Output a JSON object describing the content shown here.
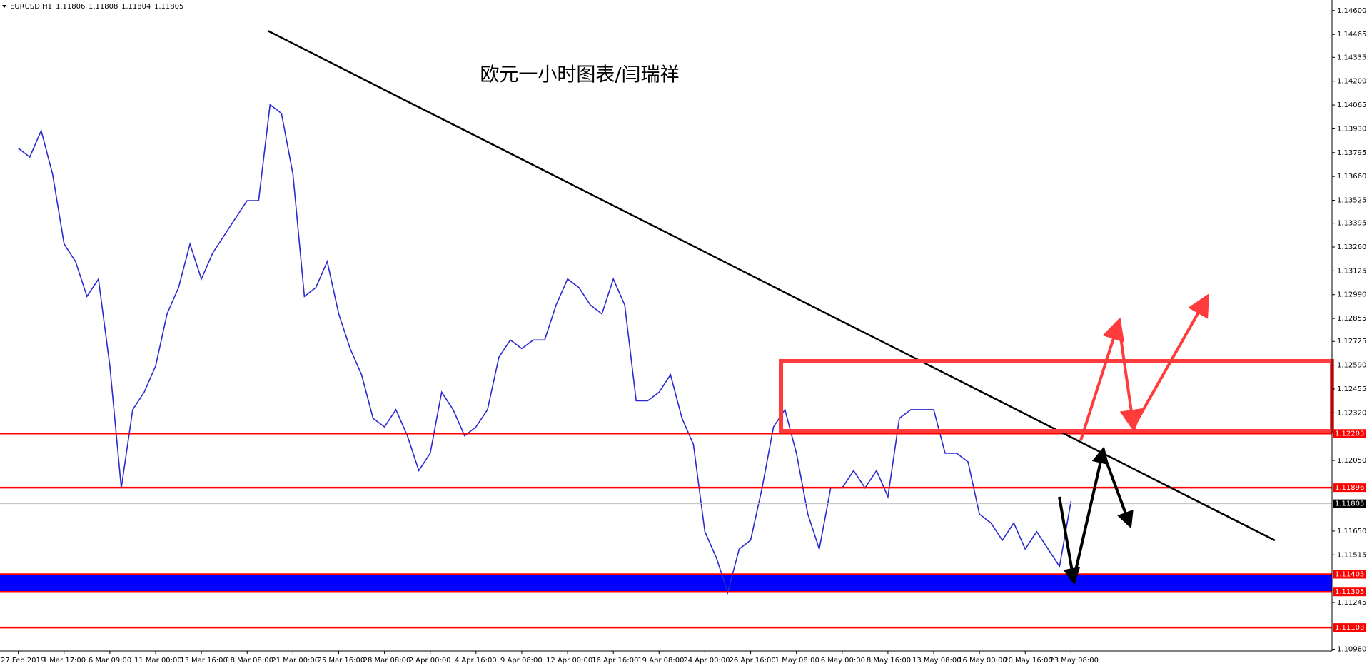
{
  "chart_data": {
    "type": "line",
    "symbol": "EURUSD,H1",
    "quote": [
      1.11806,
      1.11808,
      1.11804,
      1.11805
    ],
    "title": "欧元一小时图表/闫瑞祥",
    "categories": [
      "27 Feb 2019",
      null,
      null,
      null,
      "1 Mar 17:00",
      null,
      null,
      null,
      "6 Mar 09:00",
      null,
      null,
      null,
      "11 Mar 00:00",
      null,
      null,
      null,
      "13 Mar 16:00",
      null,
      null,
      null,
      "18 Mar 08:00",
      null,
      null,
      null,
      "21 Mar 00:00",
      null,
      null,
      null,
      "25 Mar 16:00",
      null,
      null,
      null,
      "28 Mar 08:00",
      null,
      null,
      null,
      "2 Apr 00:00",
      null,
      null,
      null,
      "4 Apr 16:00",
      null,
      null,
      null,
      "9 Apr 08:00",
      null,
      null,
      null,
      "12 Apr 00:00",
      null,
      null,
      null,
      "16 Apr 16:00",
      null,
      null,
      null,
      "19 Apr 08:00",
      null,
      null,
      null,
      "24 Apr 00:00",
      null,
      null,
      null,
      "26 Apr 16:00",
      null,
      null,
      null,
      "1 May 08:00",
      null,
      null,
      null,
      "6 May 00:00",
      null,
      null,
      null,
      "8 May 16:00",
      null,
      null,
      null,
      "13 May 08:00",
      null,
      null,
      null,
      "16 May 00:00",
      null,
      null,
      null,
      "20 May 16:00",
      null,
      null,
      null,
      "23 May 08:00"
    ],
    "series": [
      {
        "name": "EURUSD",
        "color": "#2a2ad0",
        "values": [
          1.1382,
          1.1377,
          1.13919,
          1.13672,
          1.13277,
          1.13178,
          1.1298,
          1.13079,
          1.12585,
          1.11894,
          1.12338,
          1.12437,
          1.12585,
          1.12881,
          1.1303,
          1.13277,
          1.13079,
          1.13227,
          1.13326,
          1.13425,
          1.13523,
          1.13523,
          1.14067,
          1.14017,
          1.13672,
          1.1298,
          1.1303,
          1.13178,
          1.12881,
          1.12684,
          1.12536,
          1.12289,
          1.1224,
          1.12338,
          1.1219,
          1.11993,
          1.12091,
          1.12437,
          1.12338,
          1.1219,
          1.1224,
          1.12338,
          1.12635,
          1.12733,
          1.12684,
          1.12733,
          1.12733,
          1.12931,
          1.13079,
          1.1303,
          1.12931,
          1.12881,
          1.13079,
          1.12931,
          1.12388,
          1.12388,
          1.12437,
          1.12536,
          1.12289,
          1.12141,
          1.11647,
          1.11499,
          1.11301,
          1.11548,
          1.11598,
          1.11894,
          1.1224,
          1.12338,
          1.12091,
          1.11746,
          1.11548,
          1.11894,
          1.11894,
          1.11993,
          1.11894,
          1.11993,
          1.11844,
          1.12289,
          1.12338,
          1.12338,
          1.12338,
          1.12091,
          1.12091,
          1.12042,
          1.11746,
          1.11696,
          1.11598,
          1.11696,
          1.11548,
          1.11647,
          1.11548,
          1.11449,
          1.1182
        ]
      }
    ],
    "ylim": [
      1.1097,
      1.1466
    ],
    "yticks": [
      {
        "value": 1.146,
        "label": "1.14600"
      },
      1.14465,
      1.14335,
      {
        "value": 1.142,
        "label": "1.14200"
      },
      1.14065,
      {
        "value": 1.1393,
        "label": "1.13930"
      },
      1.13795,
      {
        "value": 1.1366,
        "label": "1.13660"
      },
      1.13525,
      1.13395,
      {
        "value": 1.1326,
        "label": "1.13260"
      },
      1.13125,
      {
        "value": 1.1299,
        "label": "1.12990"
      },
      1.12855,
      1.12725,
      {
        "value": 1.1259,
        "label": "1.12590"
      },
      1.12455,
      {
        "value": 1.1232,
        "label": "1.12320"
      },
      {
        "value": 1.1205,
        "label": "1.12050"
      },
      {
        "value": 1.1165,
        "label": "1.11650"
      },
      1.11515,
      1.11245,
      {
        "value": 1.1098,
        "label": "1.10980"
      }
    ],
    "levels": [
      {
        "value": 1.12203,
        "color": "#ff0000"
      },
      {
        "value": 1.11896,
        "color": "#ff0000"
      },
      {
        "value": 1.11805,
        "color": "#c0c0c0"
      },
      {
        "value": 1.11405,
        "color": "#ff0000"
      },
      {
        "value": 1.11305,
        "color": "#ff0000"
      },
      {
        "value": 1.11103,
        "color": "#ff0000"
      }
    ],
    "band_color": "#0000ff"
  }
}
